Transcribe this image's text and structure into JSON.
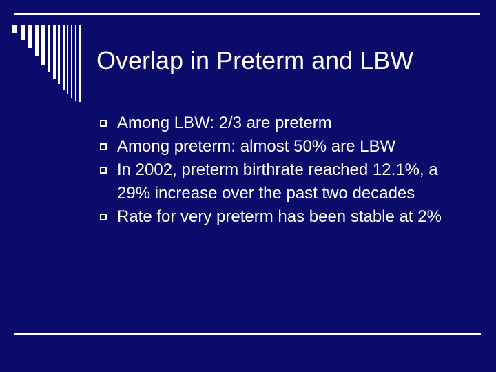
{
  "slide": {
    "title": "Overlap in Preterm and LBW",
    "bullets": [
      "Among LBW: 2/3 are preterm",
      "Among preterm: almost 50% are LBW",
      "In 2002, preterm birthrate reached 12.1%, a 29% increase over the past two decades",
      "Rate for very preterm has been stable at 2%"
    ],
    "bullet_marker_icon": "hollow-square-icon"
  },
  "colors": {
    "background": "#0b0b6b",
    "foreground": "#ffffff"
  }
}
